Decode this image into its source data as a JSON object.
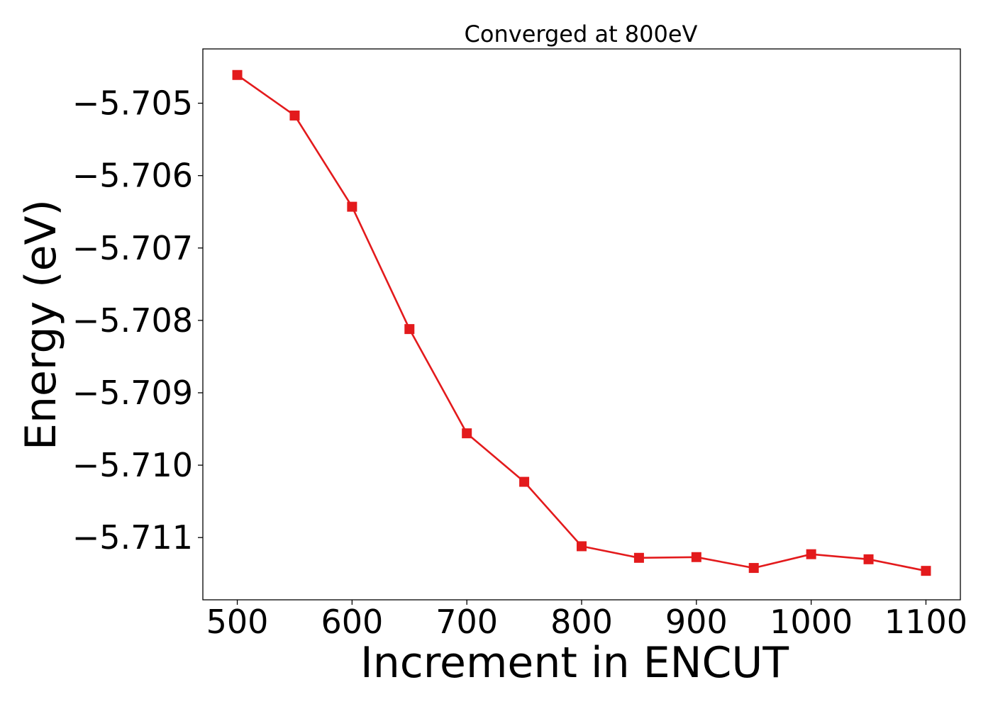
{
  "chart_data": {
    "type": "line",
    "title": "Converged at 800eV",
    "xlabel": "Increment in ENCUT",
    "ylabel": "Energy (eV)",
    "xlim": [
      470,
      1130
    ],
    "ylim": [
      -5.71186,
      -5.70425
    ],
    "xticks": [
      500,
      600,
      700,
      800,
      900,
      1000,
      1100
    ],
    "xtick_labels": [
      "500",
      "600",
      "700",
      "800",
      "900",
      "1000",
      "1100"
    ],
    "yticks": [
      -5.705,
      -5.706,
      -5.707,
      -5.708,
      -5.709,
      -5.71,
      -5.711
    ],
    "ytick_labels": [
      "−5.705",
      "−5.706",
      "−5.707",
      "−5.708",
      "−5.709",
      "−5.710",
      "−5.711"
    ],
    "grid": false,
    "series": [
      {
        "color": "#e31a1c",
        "marker": "square",
        "x": [
          500,
          550,
          600,
          650,
          700,
          750,
          800,
          850,
          900,
          950,
          1000,
          1050,
          1100
        ],
        "y": [
          -5.70461,
          -5.70517,
          -5.70643,
          -5.70812,
          -5.70956,
          -5.71023,
          -5.71112,
          -5.71128,
          -5.71127,
          -5.71142,
          -5.71123,
          -5.7113,
          -5.71146
        ]
      }
    ]
  }
}
